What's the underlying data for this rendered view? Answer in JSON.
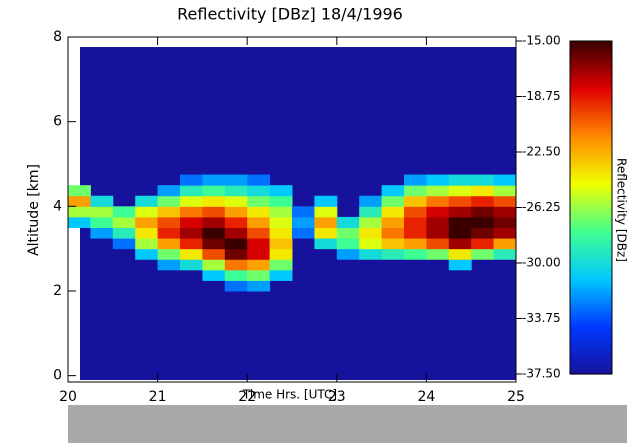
{
  "chart_data": {
    "type": "heatmap",
    "title": "Reflectivity [DBz] 18/4/1996",
    "x_label": "Time Hrs. [UTC]",
    "y_label": "Altitude [km]",
    "colorbar_label": "Reflectivity [DBz]",
    "xlim": [
      20,
      25
    ],
    "xticks": [
      20,
      21,
      22,
      23,
      24,
      25
    ],
    "ylim": [
      -0.15,
      8
    ],
    "yticks": [
      0,
      2,
      4,
      6,
      8
    ],
    "clim": [
      -37.5,
      -15
    ],
    "cticks": [
      {
        "value": -15,
        "label": "-15.00"
      },
      {
        "value": -18.75,
        "label": "-18.75"
      },
      {
        "value": -22.5,
        "label": "-22.50"
      },
      {
        "value": -26.25,
        "label": "-26.25"
      },
      {
        "value": -30,
        "label": "-30.00"
      },
      {
        "value": -33.75,
        "label": "-33.75"
      },
      {
        "value": -37.5,
        "label": "-37.50"
      }
    ],
    "colors": [
      "#16129c",
      "#0038ff",
      "#00c8ff",
      "#40ff90",
      "#f0ff00",
      "#ff8a00",
      "#e00000",
      "#3a0000"
    ],
    "x": [
      20.125,
      20.375,
      20.625,
      20.875,
      21.125,
      21.375,
      21.625,
      21.875,
      22.125,
      22.375,
      22.625,
      22.875,
      23.125,
      23.375,
      23.625,
      23.875,
      24.125,
      24.375,
      24.625,
      24.875
    ],
    "y": [
      2.125,
      2.375,
      2.625,
      2.875,
      3.125,
      3.375,
      3.625,
      3.875,
      4.125,
      4.375,
      4.625
    ],
    "z": [
      [
        null,
        null,
        null,
        null,
        null,
        null,
        -31,
        -26,
        -22,
        -27,
        null
      ],
      [
        null,
        null,
        null,
        null,
        null,
        -32,
        -28,
        -26,
        -30,
        null,
        null
      ],
      [
        null,
        null,
        null,
        null,
        -33,
        -29,
        -26,
        -28,
        null,
        null,
        null
      ],
      [
        null,
        null,
        null,
        -31,
        -26,
        -24,
        -22,
        -25,
        -30,
        null,
        null
      ],
      [
        null,
        null,
        -32,
        -27,
        -22,
        -19,
        -20,
        -23,
        -27,
        -32,
        null
      ],
      [
        null,
        null,
        -30,
        -24,
        -19,
        -17,
        -18,
        -21,
        -25,
        -29,
        -33
      ],
      [
        null,
        -31,
        -26,
        -20,
        -16,
        -15,
        -17,
        -20,
        -24,
        -28,
        -32
      ],
      [
        -33,
        -28,
        -21,
        -16,
        -15,
        -17,
        -19,
        -22,
        -25,
        -29,
        -32
      ],
      [
        -32,
        -27,
        -22,
        -18,
        -18,
        -20,
        -22,
        -24,
        -27,
        -30,
        -33
      ],
      [
        null,
        -31,
        -27,
        -24,
        -23,
        -24,
        -25,
        -26,
        -28,
        -31,
        null
      ],
      [
        null,
        null,
        null,
        null,
        null,
        -33,
        -32,
        -33,
        null,
        null,
        null
      ],
      [
        null,
        null,
        null,
        null,
        -30,
        -24,
        -22,
        -25,
        -31,
        null,
        null
      ],
      [
        null,
        null,
        null,
        -32,
        -28,
        -27,
        -30,
        null,
        null,
        null,
        null
      ],
      [
        null,
        null,
        null,
        -30,
        -25,
        -24,
        -26,
        -29,
        -32,
        null,
        null
      ],
      [
        null,
        null,
        null,
        -29,
        -23,
        -21,
        -22,
        -24,
        -27,
        -31,
        null
      ],
      [
        null,
        null,
        null,
        -28,
        -22,
        -19,
        -19,
        -20,
        -23,
        -27,
        -32
      ],
      [
        null,
        null,
        null,
        -27,
        -20,
        -17,
        -17,
        -18,
        -21,
        -26,
        -31
      ],
      [
        null,
        null,
        -31,
        -24,
        -17,
        -15,
        -15,
        -17,
        -20,
        -25,
        -30
      ],
      [
        null,
        null,
        null,
        -27,
        -19,
        -16,
        -15,
        -16,
        -19,
        -24,
        -30
      ],
      [
        null,
        null,
        null,
        -29,
        -22,
        -17,
        -16,
        -17,
        -20,
        -26,
        -31
      ]
    ]
  }
}
